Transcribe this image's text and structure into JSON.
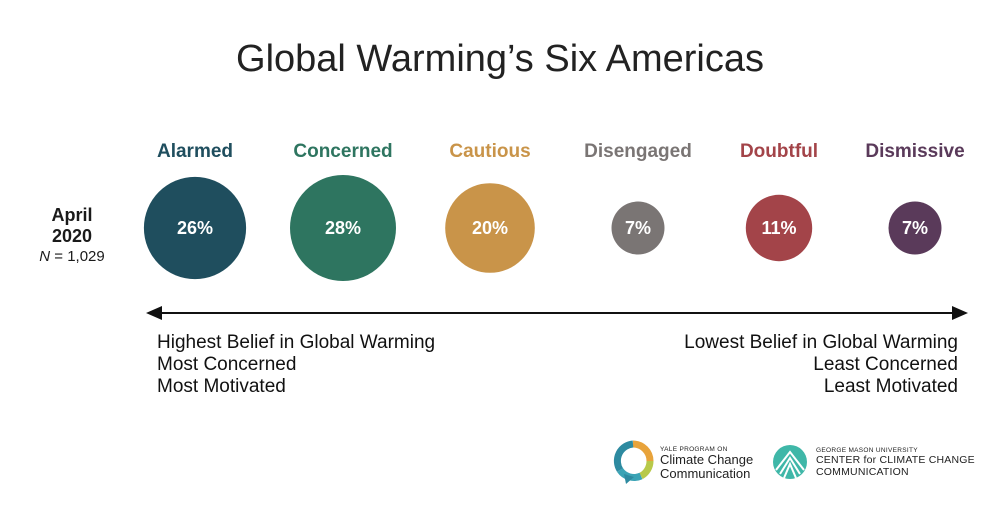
{
  "title": "Global Warming’s Six Americas",
  "date_label": {
    "month": "April",
    "year": "2020",
    "n_italic": "N",
    "n_text": " = 1,029"
  },
  "chart_data": {
    "type": "bubble",
    "title": "Global Warming’s Six Americas",
    "categories": [
      "Alarmed",
      "Concerned",
      "Cautious",
      "Disengaged",
      "Doubtful",
      "Dismissive"
    ],
    "values": [
      26,
      28,
      20,
      7,
      11,
      7
    ],
    "value_labels": [
      "26%",
      "28%",
      "20%",
      "7%",
      "11%",
      "7%"
    ],
    "colors": [
      "#1f4e5e",
      "#2e7560",
      "#c99449",
      "#7a7574",
      "#a34449",
      "#5a3a5a"
    ]
  },
  "scale": {
    "left_labels": [
      "Highest Belief in Global Warming",
      "Most Concerned",
      "Most Motivated"
    ],
    "right_labels": [
      "Lowest Belief in Global Warming",
      "Least Concerned",
      "Least Motivated"
    ]
  },
  "logos": {
    "yale": {
      "small": "YALE PROGRAM ON",
      "line1": "Climate Change",
      "line2": "Communication"
    },
    "gmu": {
      "small": "GEORGE MASON UNIVERSITY",
      "line1": "CENTER for CLIMATE CHANGE",
      "line2": "COMMUNICATION"
    }
  }
}
